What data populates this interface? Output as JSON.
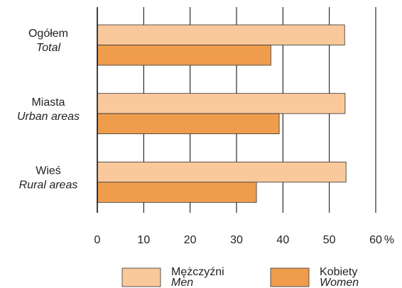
{
  "chart_data": {
    "type": "barh",
    "categories": [
      "Ogółem",
      "Miasta",
      "Wieś"
    ],
    "categories_en": [
      "Total",
      "Urban areas",
      "Rural areas"
    ],
    "series": [
      {
        "name": "Mężczyźni",
        "name_en": "Men",
        "color": "#f9c89b",
        "values": [
          53.3,
          53.4,
          53.6
        ]
      },
      {
        "name": "Kobiety",
        "name_en": "Women",
        "color": "#ef9d4d",
        "values": [
          37.4,
          39.2,
          34.3
        ]
      }
    ],
    "xlabel": "%",
    "xlim": [
      0,
      60
    ],
    "xticks": [
      0,
      10,
      20,
      30,
      40,
      50,
      60
    ],
    "grid": true
  }
}
